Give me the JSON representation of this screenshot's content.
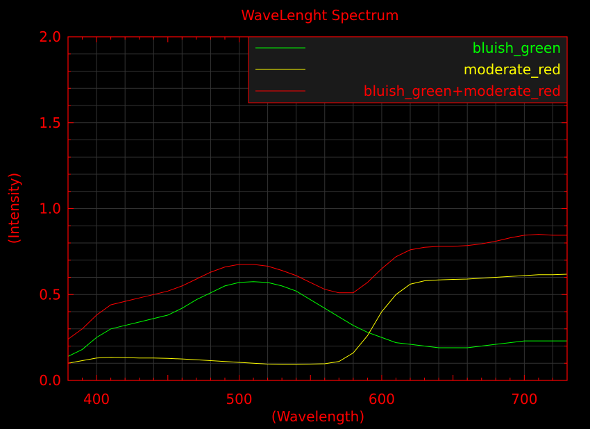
{
  "chart_data": {
    "type": "line",
    "title": "WaveLenght Spectrum",
    "xlabel": "(Wavelength)",
    "ylabel": "(Intensity)",
    "xlim": [
      380,
      730
    ],
    "ylim": [
      0,
      2.0
    ],
    "xticks": [
      400,
      500,
      600,
      700
    ],
    "yticks": [
      "0.0",
      "0.5",
      "1.0",
      "1.5",
      "2.0"
    ],
    "grid": true,
    "legend_position": "top-right",
    "colors": {
      "background": "#000000",
      "axis": "#ff0000",
      "grid": "#333333"
    },
    "x": [
      380,
      390,
      400,
      410,
      420,
      430,
      440,
      450,
      460,
      470,
      480,
      490,
      500,
      510,
      520,
      530,
      540,
      550,
      560,
      570,
      580,
      590,
      600,
      610,
      620,
      630,
      640,
      650,
      660,
      670,
      680,
      690,
      700,
      710,
      720,
      730
    ],
    "series": [
      {
        "name": "bluish_green",
        "color": "#00ff00",
        "values": [
          0.14,
          0.18,
          0.25,
          0.3,
          0.32,
          0.34,
          0.36,
          0.38,
          0.42,
          0.47,
          0.51,
          0.55,
          0.57,
          0.575,
          0.57,
          0.55,
          0.52,
          0.47,
          0.42,
          0.37,
          0.32,
          0.28,
          0.25,
          0.22,
          0.21,
          0.2,
          0.19,
          0.19,
          0.19,
          0.2,
          0.21,
          0.22,
          0.23,
          0.23,
          0.23,
          0.23
        ]
      },
      {
        "name": "moderate_red",
        "color": "#ffff00",
        "values": [
          0.1,
          0.115,
          0.13,
          0.135,
          0.133,
          0.13,
          0.13,
          0.128,
          0.125,
          0.12,
          0.115,
          0.11,
          0.105,
          0.1,
          0.095,
          0.093,
          0.093,
          0.095,
          0.097,
          0.11,
          0.16,
          0.26,
          0.4,
          0.5,
          0.56,
          0.58,
          0.585,
          0.588,
          0.59,
          0.595,
          0.6,
          0.605,
          0.61,
          0.615,
          0.615,
          0.618
        ]
      },
      {
        "name": "bluish_green+moderate_red",
        "color": "#ff0000",
        "values": [
          0.24,
          0.3,
          0.38,
          0.44,
          0.46,
          0.48,
          0.5,
          0.52,
          0.55,
          0.59,
          0.63,
          0.66,
          0.675,
          0.675,
          0.665,
          0.64,
          0.61,
          0.57,
          0.53,
          0.51,
          0.51,
          0.57,
          0.65,
          0.72,
          0.76,
          0.775,
          0.78,
          0.78,
          0.785,
          0.795,
          0.81,
          0.83,
          0.845,
          0.85,
          0.845,
          0.845
        ]
      }
    ]
  }
}
